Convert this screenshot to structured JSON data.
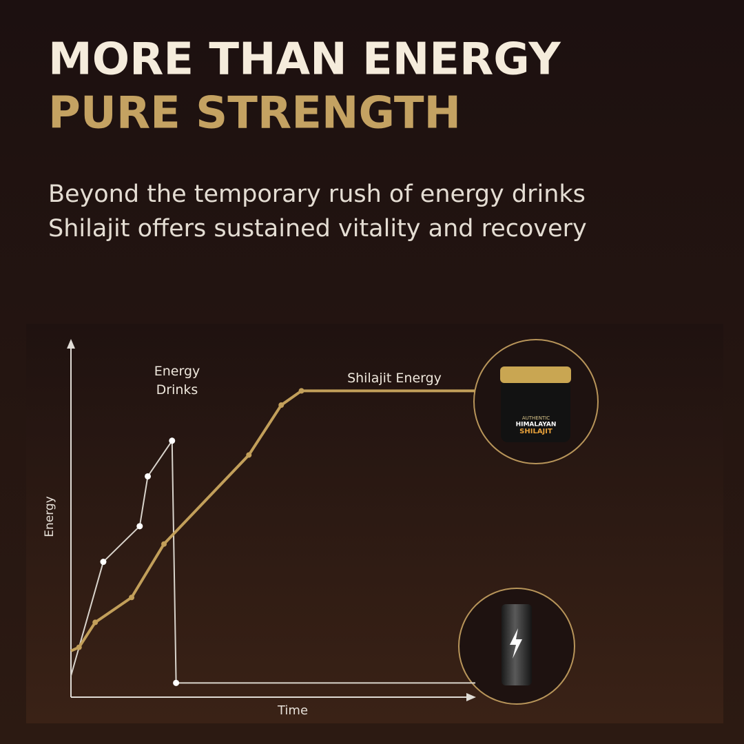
{
  "header": {
    "title_line1": "MORE THAN ENERGY",
    "title_line2": "PURE STRENGTH",
    "subtitle_line1": "Beyond the temporary rush of energy drinks",
    "subtitle_line2": "Shilajit offers sustained vitality and recovery"
  },
  "jar_label": [
    "AUTHENTIC",
    "HIMALAYAN",
    "SHILAJIT"
  ],
  "chart_data": {
    "type": "line",
    "x_label": "Time",
    "y_label": "Energy",
    "xlim": [
      0,
      100
    ],
    "ylim": [
      0,
      100
    ],
    "series": [
      {
        "name": "Energy Drinks",
        "color": "#d9d4cc",
        "x": [
          0,
          8,
          17,
          19,
          25,
          26,
          100
        ],
        "values": [
          6,
          38,
          48,
          62,
          72,
          4,
          4
        ]
      },
      {
        "name": "Shilajit Energy",
        "color": "#c29f5a",
        "x": [
          0,
          2,
          6,
          15,
          23,
          44,
          52,
          57,
          100
        ],
        "values": [
          13,
          14,
          21,
          28,
          43,
          68,
          82,
          86,
          86
        ]
      }
    ]
  }
}
